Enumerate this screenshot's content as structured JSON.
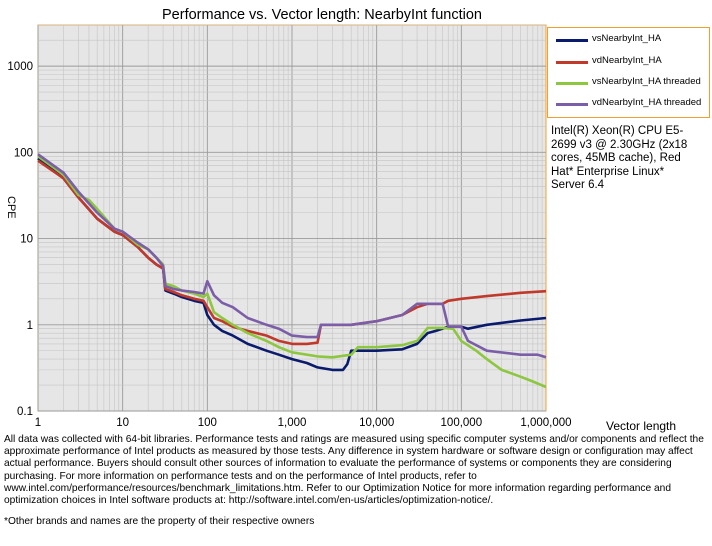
{
  "chart_data": {
    "type": "line",
    "title": "Performance vs. Vector length: NearbyInt function",
    "xlabel": "Vector length",
    "ylabel": "CPE",
    "xscale": "log",
    "yscale": "log",
    "xlim": [
      1,
      1000000
    ],
    "ylim": [
      0.1,
      3000
    ],
    "x_ticks": [
      "1",
      "10",
      "100",
      "1,000",
      "10,000",
      "100,000",
      "1,000,000"
    ],
    "y_ticks": [
      "0.1",
      "1",
      "10",
      "100",
      "1000"
    ],
    "grid": true,
    "legend_position": "top-right",
    "series": [
      {
        "name": "vsNearbyInt_HA",
        "color": "#0a1b6e",
        "points": [
          [
            1,
            85
          ],
          [
            2,
            50
          ],
          [
            3,
            30
          ],
          [
            5,
            17
          ],
          [
            8,
            12
          ],
          [
            10,
            11
          ],
          [
            15,
            8
          ],
          [
            20,
            6
          ],
          [
            25,
            5
          ],
          [
            30,
            4.5
          ],
          [
            32,
            2.5
          ],
          [
            40,
            2.3
          ],
          [
            50,
            2.1
          ],
          [
            70,
            1.9
          ],
          [
            90,
            1.8
          ],
          [
            100,
            1.3
          ],
          [
            120,
            1.0
          ],
          [
            150,
            0.85
          ],
          [
            200,
            0.75
          ],
          [
            300,
            0.6
          ],
          [
            500,
            0.5
          ],
          [
            700,
            0.45
          ],
          [
            1000,
            0.4
          ],
          [
            1500,
            0.36
          ],
          [
            2000,
            0.32
          ],
          [
            3000,
            0.3
          ],
          [
            4000,
            0.3
          ],
          [
            4500,
            0.35
          ],
          [
            5000,
            0.5
          ],
          [
            10000,
            0.5
          ],
          [
            20000,
            0.52
          ],
          [
            30000,
            0.6
          ],
          [
            40000,
            0.8
          ],
          [
            50000,
            0.85
          ],
          [
            60000,
            0.9
          ],
          [
            70000,
            0.95
          ],
          [
            100000,
            0.95
          ],
          [
            120000,
            0.9
          ],
          [
            200000,
            1.0
          ],
          [
            500000,
            1.12
          ],
          [
            1000000,
            1.2
          ]
        ]
      },
      {
        "name": "vdNearbyInt_HA",
        "color": "#c0392b",
        "points": [
          [
            1,
            80
          ],
          [
            2,
            50
          ],
          [
            3,
            30
          ],
          [
            5,
            17
          ],
          [
            8,
            12
          ],
          [
            10,
            11
          ],
          [
            15,
            8
          ],
          [
            20,
            6
          ],
          [
            25,
            5
          ],
          [
            30,
            4.5
          ],
          [
            32,
            2.6
          ],
          [
            40,
            2.4
          ],
          [
            50,
            2.2
          ],
          [
            70,
            2.0
          ],
          [
            90,
            1.9
          ],
          [
            100,
            1.6
          ],
          [
            120,
            1.2
          ],
          [
            150,
            1.1
          ],
          [
            200,
            0.95
          ],
          [
            300,
            0.85
          ],
          [
            500,
            0.75
          ],
          [
            700,
            0.65
          ],
          [
            1000,
            0.6
          ],
          [
            1500,
            0.6
          ],
          [
            2000,
            0.62
          ],
          [
            2200,
            1.0
          ],
          [
            5000,
            1.0
          ],
          [
            10000,
            1.1
          ],
          [
            20000,
            1.3
          ],
          [
            30000,
            1.6
          ],
          [
            40000,
            1.75
          ],
          [
            60000,
            1.75
          ],
          [
            70000,
            1.9
          ],
          [
            100000,
            2.0
          ],
          [
            200000,
            2.15
          ],
          [
            500000,
            2.35
          ],
          [
            1000000,
            2.45
          ]
        ]
      },
      {
        "name": "vsNearbyInt_HA threaded",
        "color": "#8dc63f",
        "points": [
          [
            1,
            90
          ],
          [
            2,
            55
          ],
          [
            3,
            32
          ],
          [
            4,
            28
          ],
          [
            5,
            22
          ],
          [
            8,
            13
          ],
          [
            10,
            12
          ],
          [
            15,
            8.5
          ],
          [
            20,
            7.5
          ],
          [
            25,
            6
          ],
          [
            30,
            5
          ],
          [
            32,
            3
          ],
          [
            40,
            2.8
          ],
          [
            50,
            2.5
          ],
          [
            70,
            2.3
          ],
          [
            90,
            2.1
          ],
          [
            100,
            2.3
          ],
          [
            120,
            1.4
          ],
          [
            150,
            1.2
          ],
          [
            200,
            1.0
          ],
          [
            300,
            0.8
          ],
          [
            500,
            0.65
          ],
          [
            700,
            0.55
          ],
          [
            1000,
            0.48
          ],
          [
            2000,
            0.43
          ],
          [
            3000,
            0.42
          ],
          [
            5000,
            0.45
          ],
          [
            6000,
            0.55
          ],
          [
            10000,
            0.55
          ],
          [
            20000,
            0.58
          ],
          [
            30000,
            0.65
          ],
          [
            40000,
            0.92
          ],
          [
            60000,
            0.92
          ],
          [
            80000,
            0.9
          ],
          [
            100000,
            0.65
          ],
          [
            150000,
            0.5
          ],
          [
            200000,
            0.4
          ],
          [
            300000,
            0.3
          ],
          [
            500000,
            0.25
          ],
          [
            700000,
            0.22
          ],
          [
            1000000,
            0.19
          ]
        ]
      },
      {
        "name": "vdNearbyInt_HA threaded",
        "color": "#7b5ea7",
        "points": [
          [
            1,
            95
          ],
          [
            2,
            58
          ],
          [
            3,
            35
          ],
          [
            5,
            20
          ],
          [
            8,
            13
          ],
          [
            10,
            12
          ],
          [
            15,
            9
          ],
          [
            20,
            7.5
          ],
          [
            25,
            6
          ],
          [
            30,
            4.8
          ],
          [
            32,
            2.8
          ],
          [
            40,
            2.6
          ],
          [
            50,
            2.5
          ],
          [
            70,
            2.4
          ],
          [
            90,
            2.3
          ],
          [
            100,
            3.2
          ],
          [
            120,
            2.2
          ],
          [
            150,
            1.8
          ],
          [
            200,
            1.6
          ],
          [
            300,
            1.2
          ],
          [
            500,
            1.0
          ],
          [
            700,
            0.9
          ],
          [
            1000,
            0.75
          ],
          [
            1500,
            0.72
          ],
          [
            2000,
            0.72
          ],
          [
            2200,
            1.0
          ],
          [
            5000,
            1.0
          ],
          [
            10000,
            1.1
          ],
          [
            20000,
            1.3
          ],
          [
            30000,
            1.75
          ],
          [
            60000,
            1.75
          ],
          [
            70000,
            0.95
          ],
          [
            100000,
            0.95
          ],
          [
            120000,
            0.65
          ],
          [
            200000,
            0.5
          ],
          [
            500000,
            0.45
          ],
          [
            800000,
            0.45
          ],
          [
            1000000,
            0.42
          ]
        ]
      }
    ]
  },
  "system_info": "Intel(R) Xeon(R) CPU E5-2699 v3 @ 2.30GHz (2x18 cores, 45MB cache), Red Hat* Enterprise Linux* Server 6.4",
  "disclaimer": "All data was collected with 64-bit libraries. Performance tests and ratings are measured using specific computer systems and/or components and reflect the approximate performance of Intel products as measured by those tests. Any difference in system hardware or software design or configuration may affect actual performance. Buyers should consult other sources of information to evaluate the performance of systems or components they are considering purchasing. For more information on performance tests and on the performance of Intel products, refer to www.intel.com/performance/resources/benchmark_limitations.htm. Refer to our Optimization Notice for more information regarding performance and optimization choices in Intel software products at: http://software.intel.com/en-us/articles/optimization-notice/.",
  "footnote": "*Other brands and names are the property of their respective owners"
}
